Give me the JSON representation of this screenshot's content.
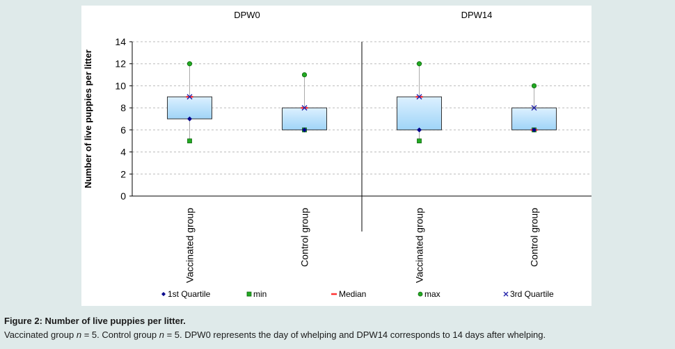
{
  "chart_data": {
    "type": "box",
    "ylabel": "Number of live puppies per litter",
    "ylim": [
      0,
      14
    ],
    "yticks": [
      0,
      2,
      4,
      6,
      8,
      10,
      12,
      14
    ],
    "grid": true,
    "legend_position": "bottom",
    "panels": [
      {
        "title": "DPW0",
        "groups": [
          {
            "category": "Vaccinated group",
            "min": 5,
            "q1": 7,
            "median": 9,
            "q3": 9,
            "max": 12
          },
          {
            "category": "Control group",
            "min": 6,
            "q1": 6,
            "median": 8,
            "q3": 8,
            "max": 11
          }
        ]
      },
      {
        "title": "DPW14",
        "groups": [
          {
            "category": "Vaccinated group",
            "min": 5,
            "q1": 6,
            "median": 9,
            "q3": 9,
            "max": 12
          },
          {
            "category": "Control group",
            "min": 6,
            "q1": 6,
            "median": 6,
            "q3": 8,
            "max": 10
          }
        ]
      }
    ],
    "legend": [
      {
        "key": "q1",
        "label": "1st Quartile",
        "color": "#00008b",
        "marker": "diamond"
      },
      {
        "key": "min",
        "label": "min",
        "color": "#22aa22",
        "marker": "square"
      },
      {
        "key": "median",
        "label": "Median",
        "color": "#ff3333",
        "marker": "dash"
      },
      {
        "key": "max",
        "label": "max",
        "color": "#22aa22",
        "marker": "circle"
      },
      {
        "key": "q3",
        "label": "3rd Quartile",
        "color": "#2222aa",
        "marker": "cross"
      }
    ],
    "colors": {
      "box_fill_top": "#dcf0ff",
      "box_fill_bottom": "#9fd4f7",
      "box_stroke": "#333333",
      "whisker": "#aaaaaa"
    }
  },
  "caption": {
    "title": "Figure 2: Number of live puppies per litter.",
    "note_parts": [
      "Vaccinated group ",
      "n",
      " = 5. Control group ",
      "n",
      " = 5. DPW0 represents the day of whelping and DPW14 corresponds to 14 days after whelping."
    ]
  }
}
